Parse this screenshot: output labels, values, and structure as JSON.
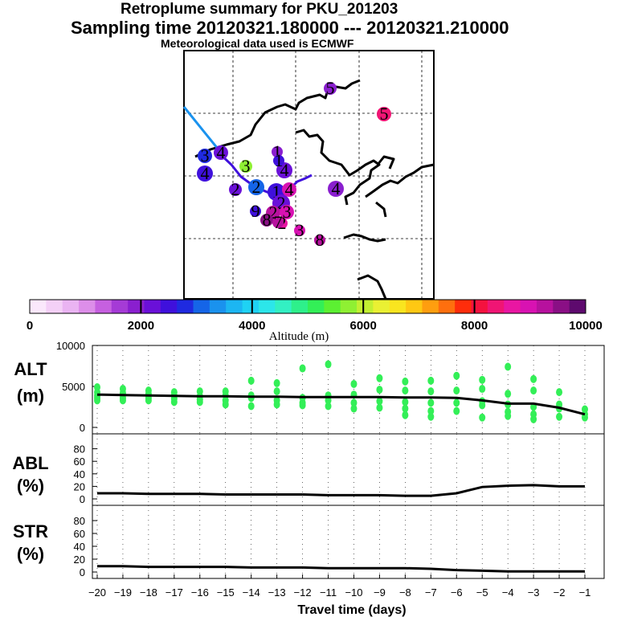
{
  "titles": {
    "line1": "Retroplume summary for PKU_201203",
    "line2": "Sampling time   20120321.180000 --- 20120321.210000",
    "line3": "Meteorological data used is ECMWF"
  },
  "map": {
    "plume_points": [
      {
        "label": "5",
        "altitude": 2000
      },
      {
        "label": "5",
        "altitude": 8500
      },
      {
        "label": "4",
        "altitude": 2200
      },
      {
        "label": "3",
        "altitude": 2800
      },
      {
        "label": "4",
        "altitude": 2600
      },
      {
        "label": "3",
        "altitude": 5600
      },
      {
        "label": "2",
        "altitude": 2100
      },
      {
        "label": "1",
        "altitude": 2000
      },
      {
        "label": "4",
        "altitude": 2100
      },
      {
        "label": "2",
        "altitude": 3100
      },
      {
        "label": "1",
        "altitude": 2400
      },
      {
        "label": "4",
        "altitude": 9000
      },
      {
        "label": "2",
        "altitude": 2300
      },
      {
        "label": "9",
        "altitude": 2500
      },
      {
        "label": "2",
        "altitude": 9200
      },
      {
        "label": "3",
        "altitude": 9000
      },
      {
        "label": "8",
        "altitude": 9500
      },
      {
        "label": "2",
        "altitude": 8600
      },
      {
        "label": "7",
        "altitude": 9300
      },
      {
        "label": "3",
        "altitude": 9100
      },
      {
        "label": "8",
        "altitude": 9400
      },
      {
        "label": "4",
        "altitude": 1900
      },
      {
        "label": "1",
        "altitude": 2400
      }
    ]
  },
  "colorbar": {
    "title": "Altitude (m)",
    "min": 0,
    "max": 10000,
    "tick_labels": [
      "0",
      "2000",
      "4000",
      "6000",
      "8000",
      "10000"
    ],
    "colors": [
      "#fbe8fc",
      "#f4d0f7",
      "#eab4f2",
      "#dd8ee9",
      "#c660e0",
      "#a53bd6",
      "#8a1fcf",
      "#6a10d8",
      "#3f10dc",
      "#1f2ae0",
      "#1565e8",
      "#1a92ee",
      "#1cb6f2",
      "#1fd2f4",
      "#2ce6ea",
      "#33f0c3",
      "#2ef08b",
      "#33ef57",
      "#5cf032",
      "#8ff033",
      "#c2f032",
      "#eaf033",
      "#f9e51f",
      "#ffc813",
      "#ff9e0f",
      "#ff6f0e",
      "#ff2d0b",
      "#f4123f",
      "#f01574",
      "#e916a2",
      "#d812b2",
      "#b7119e",
      "#8a0f85",
      "#5e0a6e"
    ]
  },
  "chart_data": [
    {
      "type": "scatter",
      "panel": "ALT",
      "ylabel": "ALT\n(m)",
      "ylabel_line1": "ALT",
      "ylabel_line2": "(m)",
      "xlim": [
        -20,
        -1
      ],
      "ylim": [
        0,
        10000
      ],
      "yticks": [
        0,
        5000,
        10000
      ],
      "x": [
        -20,
        -19,
        -18,
        -17,
        -16,
        -15,
        -14,
        -13,
        -12,
        -11,
        -10,
        -9,
        -8,
        -7,
        -6,
        -5,
        -4,
        -3,
        -2,
        -1
      ],
      "mean_altitude": [
        4000,
        3950,
        3900,
        3850,
        3800,
        3800,
        3750,
        3750,
        3700,
        3700,
        3700,
        3700,
        3650,
        3650,
        3600,
        3300,
        2900,
        2900,
        2400,
        1600
      ],
      "particle_altitudes": [
        [
          4900,
          4300,
          3900,
          3600,
          3300
        ],
        [
          4700,
          4200,
          3600,
          3300
        ],
        [
          4500,
          4100,
          3600,
          3300
        ],
        [
          4300,
          3900,
          3500,
          3100
        ],
        [
          4400,
          3800,
          3400,
          3100
        ],
        [
          4400,
          3900,
          3300,
          2800
        ],
        [
          5700,
          3900,
          3600,
          2600
        ],
        [
          5400,
          4400,
          3300,
          2800
        ],
        [
          7200,
          3600,
          3000,
          2700
        ],
        [
          7700,
          3900,
          3300,
          2600
        ],
        [
          5300,
          4000,
          3000,
          2300
        ],
        [
          6000,
          4600,
          3200,
          2400
        ],
        [
          5600,
          4500,
          3100,
          2300,
          1500
        ],
        [
          5700,
          4400,
          3000,
          2000,
          1300
        ],
        [
          6300,
          4500,
          3000,
          2000
        ],
        [
          5800,
          4700,
          3200,
          2700,
          1200
        ],
        [
          7400,
          4100,
          2800,
          1900,
          1400
        ],
        [
          5900,
          4500,
          2500,
          1600,
          1000
        ],
        [
          4300,
          2800,
          2300,
          1300
        ],
        [
          2200,
          1600,
          1200
        ]
      ]
    },
    {
      "type": "line",
      "panel": "ABL",
      "ylabel_line1": "ABL",
      "ylabel_line2": "(%)",
      "xlim": [
        -20,
        -1
      ],
      "ylim": [
        0,
        100
      ],
      "yticks": [
        0,
        20,
        40,
        60,
        80
      ],
      "x": [
        -20,
        -19,
        -18,
        -17,
        -16,
        -15,
        -14,
        -13,
        -12,
        -11,
        -10,
        -9,
        -8,
        -7,
        -6,
        -5,
        -4,
        -3,
        -2,
        -1
      ],
      "values": [
        9,
        9,
        8,
        8,
        8,
        7,
        7,
        7,
        7,
        6,
        6,
        6,
        5,
        5,
        9,
        19,
        21,
        22,
        20,
        20
      ]
    },
    {
      "type": "line",
      "panel": "STR",
      "ylabel_line1": "STR",
      "ylabel_line2": "(%)",
      "xlim": [
        -20,
        -1
      ],
      "ylim": [
        0,
        100
      ],
      "yticks": [
        0,
        20,
        40,
        60,
        80
      ],
      "xlabel": "Travel time (days)",
      "x": [
        -20,
        -19,
        -18,
        -17,
        -16,
        -15,
        -14,
        -13,
        -12,
        -11,
        -10,
        -9,
        -8,
        -7,
        -6,
        -5,
        -4,
        -3,
        -2,
        -1
      ],
      "values": [
        9,
        9,
        8,
        8,
        8,
        8,
        7,
        7,
        7,
        6,
        6,
        6,
        6,
        5,
        3,
        2,
        1,
        1,
        1,
        1
      ]
    }
  ]
}
